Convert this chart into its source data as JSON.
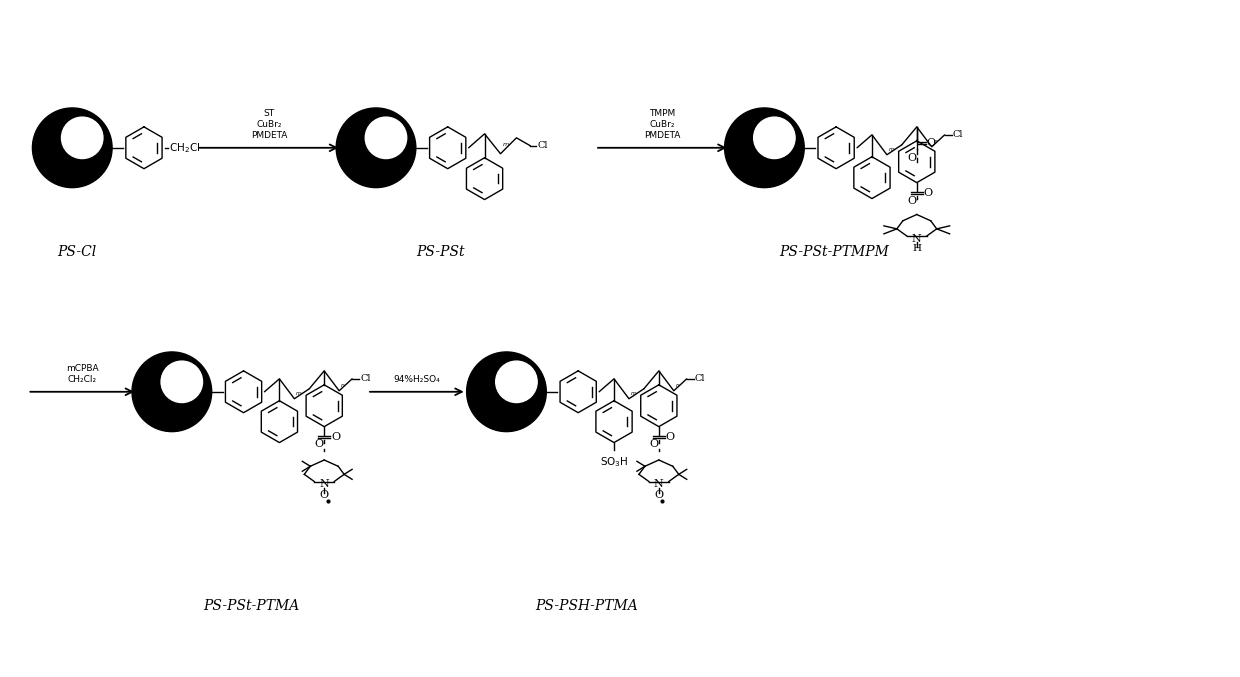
{
  "background": "#ffffff",
  "line_color": "#000000",
  "fig_width": 12.4,
  "fig_height": 6.77,
  "dpi": 100,
  "labels": {
    "PS_Cl": "PS-Cl",
    "PS_PSt": "PS-PSt",
    "PS_PSt_PTMPM": "PS-PSt-PTMPM",
    "PS_PSt_PTMA": "PS-PSt-PTMA",
    "PS_PSH_PTMA": "PS-PSH-PTMA"
  },
  "arrow1_reagents": [
    "ST",
    "CuBr₂",
    "PMDETA"
  ],
  "arrow2_reagents": [
    "TMPM",
    "CuBr₂",
    "PMDETA"
  ],
  "arrow3_reagents": [
    "mCPBA",
    "CH₂Cl₂"
  ],
  "arrow4_reagents": [
    "94%H₂SO₄"
  ]
}
